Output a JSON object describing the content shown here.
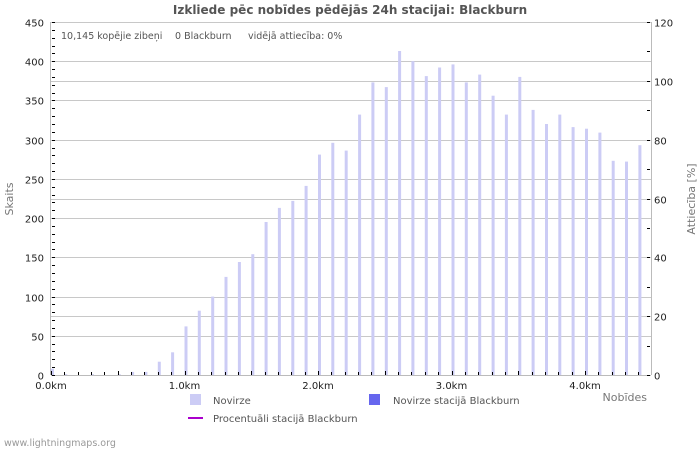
{
  "title": "Izkliede pēc nobīdes pēdējās 24h stacijai: Blackburn",
  "info": {
    "total": "10,145 kopējie zibeņi",
    "station": "0 Blackburn",
    "ratio": "vidējā attiecība: 0%"
  },
  "axes": {
    "y_left_title": "Skaits",
    "y_right_title": "Attiecība [%]",
    "x_title": "Nobīdes"
  },
  "legend": {
    "novirze": "Novirze",
    "novirze_station": "Novirze stacijā Blackburn",
    "percent_station": "Procentuāli stacijā Blackburn"
  },
  "footer": "www.lightningmaps.org",
  "colors": {
    "bar": "#ccccf5",
    "bar_station": "#6666ee",
    "line_percent": "#aa00cc",
    "grid": "#c8c8c8",
    "axis": "#bbbbbb"
  },
  "chart_data": {
    "type": "bar",
    "title": "Izkliede pēc nobīdes pēdējās 24h stacijai: Blackburn",
    "xlabel": "Nobīdes",
    "ylabel": "Skaits",
    "ylabel_right": "Attiecība [%]",
    "ylim": [
      0,
      450
    ],
    "ylim_right": [
      0,
      120
    ],
    "y_ticks": [
      0,
      50,
      100,
      150,
      200,
      250,
      300,
      350,
      400,
      450
    ],
    "y_right_ticks": [
      0,
      20,
      40,
      60,
      80,
      100,
      120
    ],
    "x_tick_labels": [
      "0.0km",
      "1.0km",
      "2.0km",
      "3.0km",
      "4.0km"
    ],
    "grid": true,
    "legend_position": "bottom",
    "categories": [
      "0.0",
      "0.1",
      "0.2",
      "0.3",
      "0.4",
      "0.5",
      "0.6",
      "0.7",
      "0.8",
      "0.9",
      "1.0",
      "1.1",
      "1.2",
      "1.3",
      "1.4",
      "1.5",
      "1.6",
      "1.7",
      "1.8",
      "1.9",
      "2.0",
      "2.1",
      "2.2",
      "2.3",
      "2.4",
      "2.5",
      "2.6",
      "2.7",
      "2.8",
      "2.9",
      "3.0",
      "3.1",
      "3.2",
      "3.3",
      "3.4",
      "3.5",
      "3.6",
      "3.7",
      "3.8",
      "3.9",
      "4.0",
      "4.1",
      "4.2",
      "4.3",
      "4.4"
    ],
    "series": [
      {
        "name": "Novirze",
        "values": [
          8,
          1,
          0,
          1,
          0,
          1,
          4,
          4,
          17,
          29,
          62,
          82,
          100,
          125,
          144,
          154,
          195,
          213,
          222,
          241,
          281,
          296,
          286,
          332,
          373,
          367,
          413,
          400,
          381,
          392,
          396,
          373,
          383,
          356,
          332,
          380,
          338,
          320,
          332,
          316,
          314,
          309,
          273,
          272,
          293
        ]
      },
      {
        "name": "Novirze stacijā Blackburn",
        "values": [
          0,
          0,
          0,
          0,
          0,
          0,
          0,
          0,
          0,
          0,
          0,
          0,
          0,
          0,
          0,
          0,
          0,
          0,
          0,
          0,
          0,
          0,
          0,
          0,
          0,
          0,
          0,
          0,
          0,
          0,
          0,
          0,
          0,
          0,
          0,
          0,
          0,
          0,
          0,
          0,
          0,
          0,
          0,
          0,
          0
        ]
      },
      {
        "name": "Procentuāli stacijā Blackburn",
        "values": [
          0,
          0,
          0,
          0,
          0,
          0,
          0,
          0,
          0,
          0,
          0,
          0,
          0,
          0,
          0,
          0,
          0,
          0,
          0,
          0,
          0,
          0,
          0,
          0,
          0,
          0,
          0,
          0,
          0,
          0,
          0,
          0,
          0,
          0,
          0,
          0,
          0,
          0,
          0,
          0,
          0,
          0,
          0,
          0,
          0
        ]
      }
    ]
  }
}
